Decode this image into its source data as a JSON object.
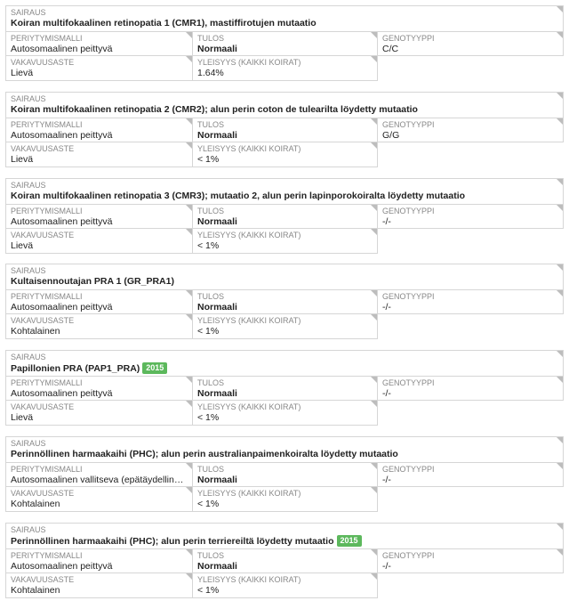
{
  "labels": {
    "disease": "SAIRAUS",
    "inheritance": "PERIYTYMISMALLI",
    "result": "TULOS",
    "genotype": "GENOTYYPPI",
    "severity": "VAKAVUUSASTE",
    "prevalence": "YLEISYYS (KAIKKI KOIRAT)"
  },
  "colors": {
    "badge": "#5cb85c"
  },
  "cards": [
    {
      "title": "Koiran multifokaalinen retinopatia 1 (CMR1), mastiffirotujen mutaatio",
      "badge": null,
      "inheritance": "Autosomaalinen peittyvä",
      "result": "Normaali",
      "genotype": "C/C",
      "severity": "Lievä",
      "prevalence": "1.64%"
    },
    {
      "title": "Koiran multifokaalinen retinopatia 2 (CMR2); alun perin coton de tulearilta löydetty mutaatio",
      "badge": null,
      "inheritance": "Autosomaalinen peittyvä",
      "result": "Normaali",
      "genotype": "G/G",
      "severity": "Lievä",
      "prevalence": "< 1%"
    },
    {
      "title": "Koiran multifokaalinen retinopatia 3 (CMR3); mutaatio 2, alun perin lapinporokoiralta löydetty mutaatio",
      "badge": null,
      "inheritance": "Autosomaalinen peittyvä",
      "result": "Normaali",
      "genotype": "-/-",
      "severity": "Lievä",
      "prevalence": "< 1%"
    },
    {
      "title": "Kultaisennoutajan PRA 1 (GR_PRA1)",
      "badge": null,
      "inheritance": "Autosomaalinen peittyvä",
      "result": "Normaali",
      "genotype": "-/-",
      "severity": "Kohtalainen",
      "prevalence": "< 1%"
    },
    {
      "title": "Papillonien PRA (PAP1_PRA)",
      "badge": "2015",
      "inheritance": "Autosomaalinen peittyvä",
      "result": "Normaali",
      "genotype": "-/-",
      "severity": "Lievä",
      "prevalence": "< 1%"
    },
    {
      "title": "Perinnöllinen harmaakaihi (PHC); alun perin australianpaimenkoiralta löydetty mutaatio",
      "badge": null,
      "inheritance": "Autosomaalinen vallitseva (epätäydellinen penetranssi)",
      "result": "Normaali",
      "genotype": "-/-",
      "severity": "Kohtalainen",
      "prevalence": "< 1%"
    },
    {
      "title": "Perinnöllinen harmaakaihi (PHC); alun perin terriereiltä löydetty mutaatio",
      "badge": "2015",
      "inheritance": "Autosomaalinen peittyvä",
      "result": "Normaali",
      "genotype": "-/-",
      "severity": "Kohtalainen",
      "prevalence": "< 1%"
    }
  ]
}
